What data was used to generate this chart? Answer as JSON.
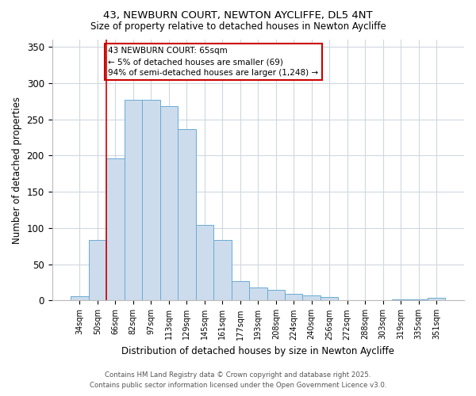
{
  "title_line1": "43, NEWBURN COURT, NEWTON AYCLIFFE, DL5 4NT",
  "title_line2": "Size of property relative to detached houses in Newton Aycliffe",
  "xlabel": "Distribution of detached houses by size in Newton Aycliffe",
  "ylabel": "Number of detached properties",
  "categories": [
    "34sqm",
    "50sqm",
    "66sqm",
    "82sqm",
    "97sqm",
    "113sqm",
    "129sqm",
    "145sqm",
    "161sqm",
    "177sqm",
    "193sqm",
    "208sqm",
    "224sqm",
    "240sqm",
    "256sqm",
    "272sqm",
    "288sqm",
    "303sqm",
    "319sqm",
    "335sqm",
    "351sqm"
  ],
  "values": [
    6,
    84,
    196,
    277,
    277,
    268,
    237,
    104,
    84,
    27,
    18,
    15,
    9,
    7,
    5,
    1,
    0,
    1,
    2,
    2,
    4
  ],
  "bar_color": "#ccdcec",
  "bar_edge_color": "#6aaad4",
  "vline_color": "#cc0000",
  "vline_pos": 1.5,
  "annotation_text": "43 NEWBURN COURT: 65sqm\n← 5% of detached houses are smaller (69)\n94% of semi-detached houses are larger (1,248) →",
  "annotation_box_color": "#ffffff",
  "annotation_box_edge": "#cc0000",
  "ylim": [
    0,
    360
  ],
  "yticks": [
    0,
    50,
    100,
    150,
    200,
    250,
    300,
    350
  ],
  "footer_line1": "Contains HM Land Registry data © Crown copyright and database right 2025.",
  "footer_line2": "Contains public sector information licensed under the Open Government Licence v3.0.",
  "bg_color": "#ffffff",
  "plot_bg_color": "#ffffff",
  "grid_color": "#d0d8e0"
}
